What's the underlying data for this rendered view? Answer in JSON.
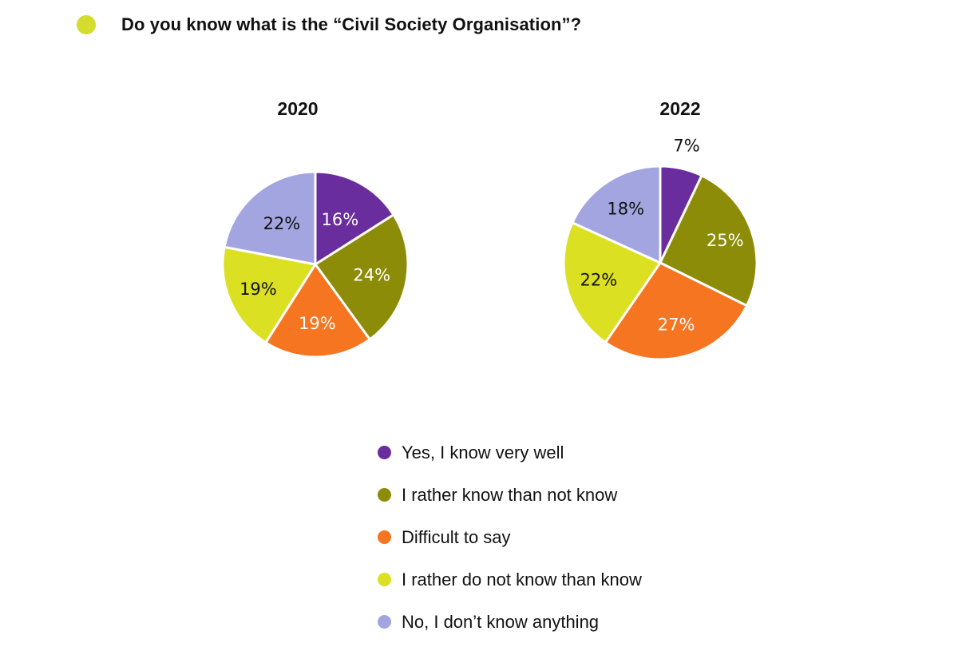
{
  "header": {
    "title": "Do you know what is the “Civil Society Organisation”?",
    "dot_color": "#d4dd2e"
  },
  "chart_data": [
    {
      "type": "pie",
      "title": "2020",
      "categories": [
        "Yes, I know very well",
        "I rather know than not know",
        "Difficult to say",
        "I rather do not know than know",
        "No, I don’t know anything"
      ],
      "values": [
        16,
        24,
        19,
        19,
        22
      ],
      "labels": [
        "16%",
        "24%",
        "19%",
        "19%",
        "22%"
      ]
    },
    {
      "type": "pie",
      "title": "2022",
      "categories": [
        "Yes, I know very well",
        "I rather know than not know",
        "Difficult to say",
        "I rather do not know than know",
        "No, I don’t know anything"
      ],
      "values": [
        7,
        25,
        27,
        22,
        18
      ],
      "labels": [
        "7%",
        "25%",
        "27%",
        "22%",
        "18%"
      ]
    }
  ],
  "legend": {
    "position": "bottom-center",
    "items": [
      {
        "label": "Yes, I know very well",
        "color": "#6a2d9e"
      },
      {
        "label": "I rather know than not know",
        "color": "#8c8c08"
      },
      {
        "label": "Difficult to say",
        "color": "#f57520"
      },
      {
        "label": "I rather do not know than know",
        "color": "#dbe022"
      },
      {
        "label": "No, I don’t know anything",
        "color": "#a3a5e0"
      }
    ]
  },
  "label_colors": [
    "#ffffff",
    "#ffffff",
    "#ffffff",
    "#111111",
    "#111111"
  ]
}
